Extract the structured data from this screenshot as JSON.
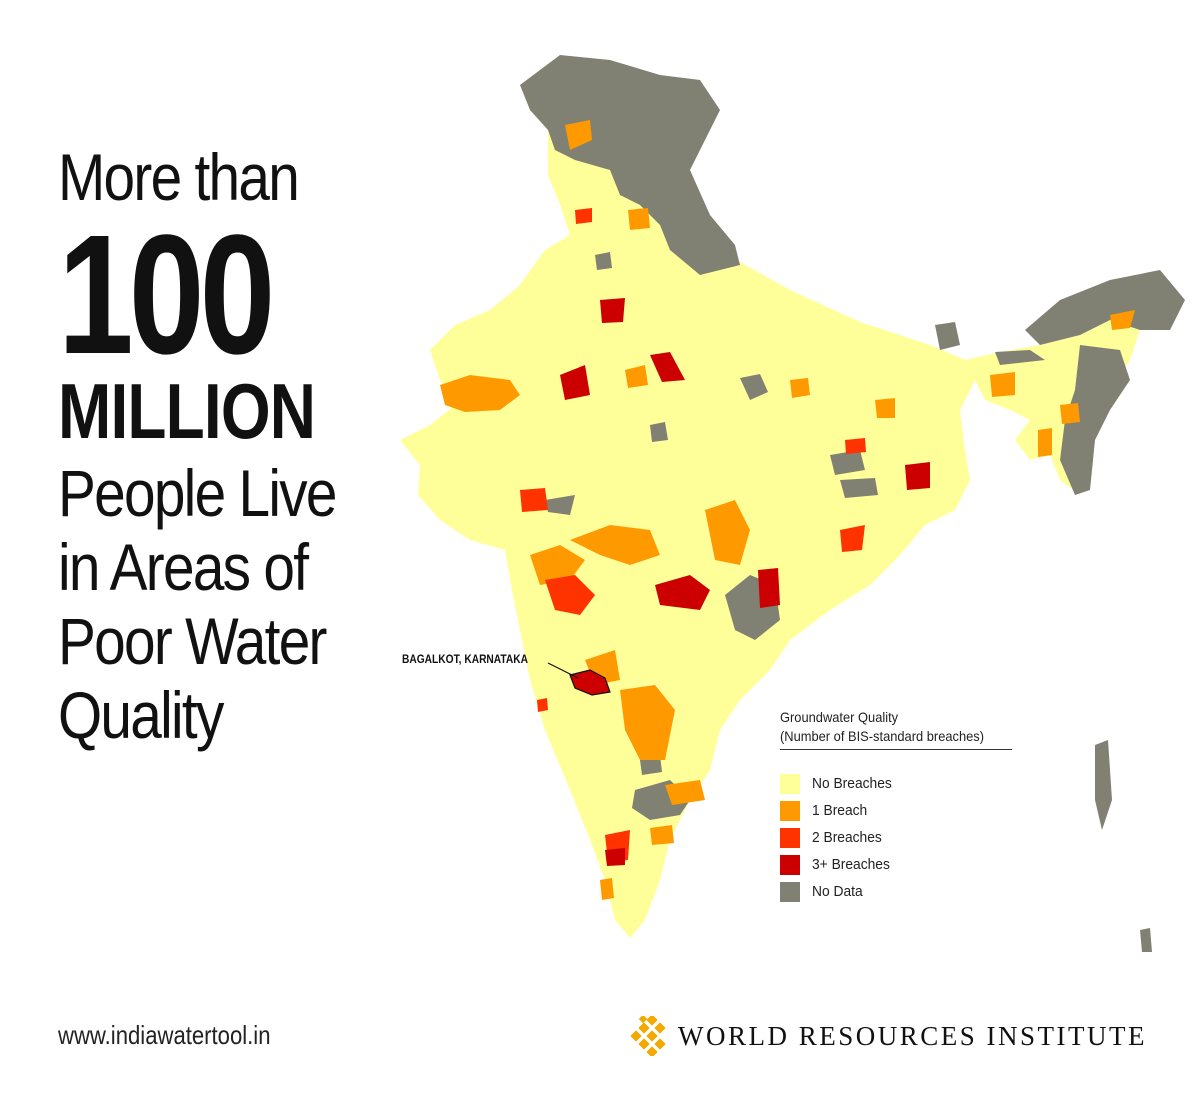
{
  "headline": {
    "line1": "More than",
    "number": "100",
    "unit": "MILLION",
    "line4": "People Live",
    "line5": "in Areas of",
    "line6": "Poor Water",
    "line7": "Quality"
  },
  "map": {
    "callout": "BAGALKOT, KARNATAKA",
    "colors": {
      "no_breaches": "#FFFF99",
      "one_breach": "#FF9900",
      "two_breaches": "#FF3300",
      "three_plus_breaches": "#CC0000",
      "no_data": "#808073"
    }
  },
  "legend": {
    "title_line1": "Groundwater Quality",
    "title_line2": "(Number of BIS-standard breaches)",
    "items": [
      {
        "label": "No Breaches",
        "color": "#FFFF99"
      },
      {
        "label": "1 Breach",
        "color": "#FF9900"
      },
      {
        "label": "2 Breaches",
        "color": "#FF3300"
      },
      {
        "label": "3+ Breaches",
        "color": "#CC0000"
      },
      {
        "label": "No Data",
        "color": "#808073"
      }
    ]
  },
  "footer": {
    "url": "www.indiawatertool.in",
    "org": "WORLD RESOURCES INSTITUTE"
  }
}
